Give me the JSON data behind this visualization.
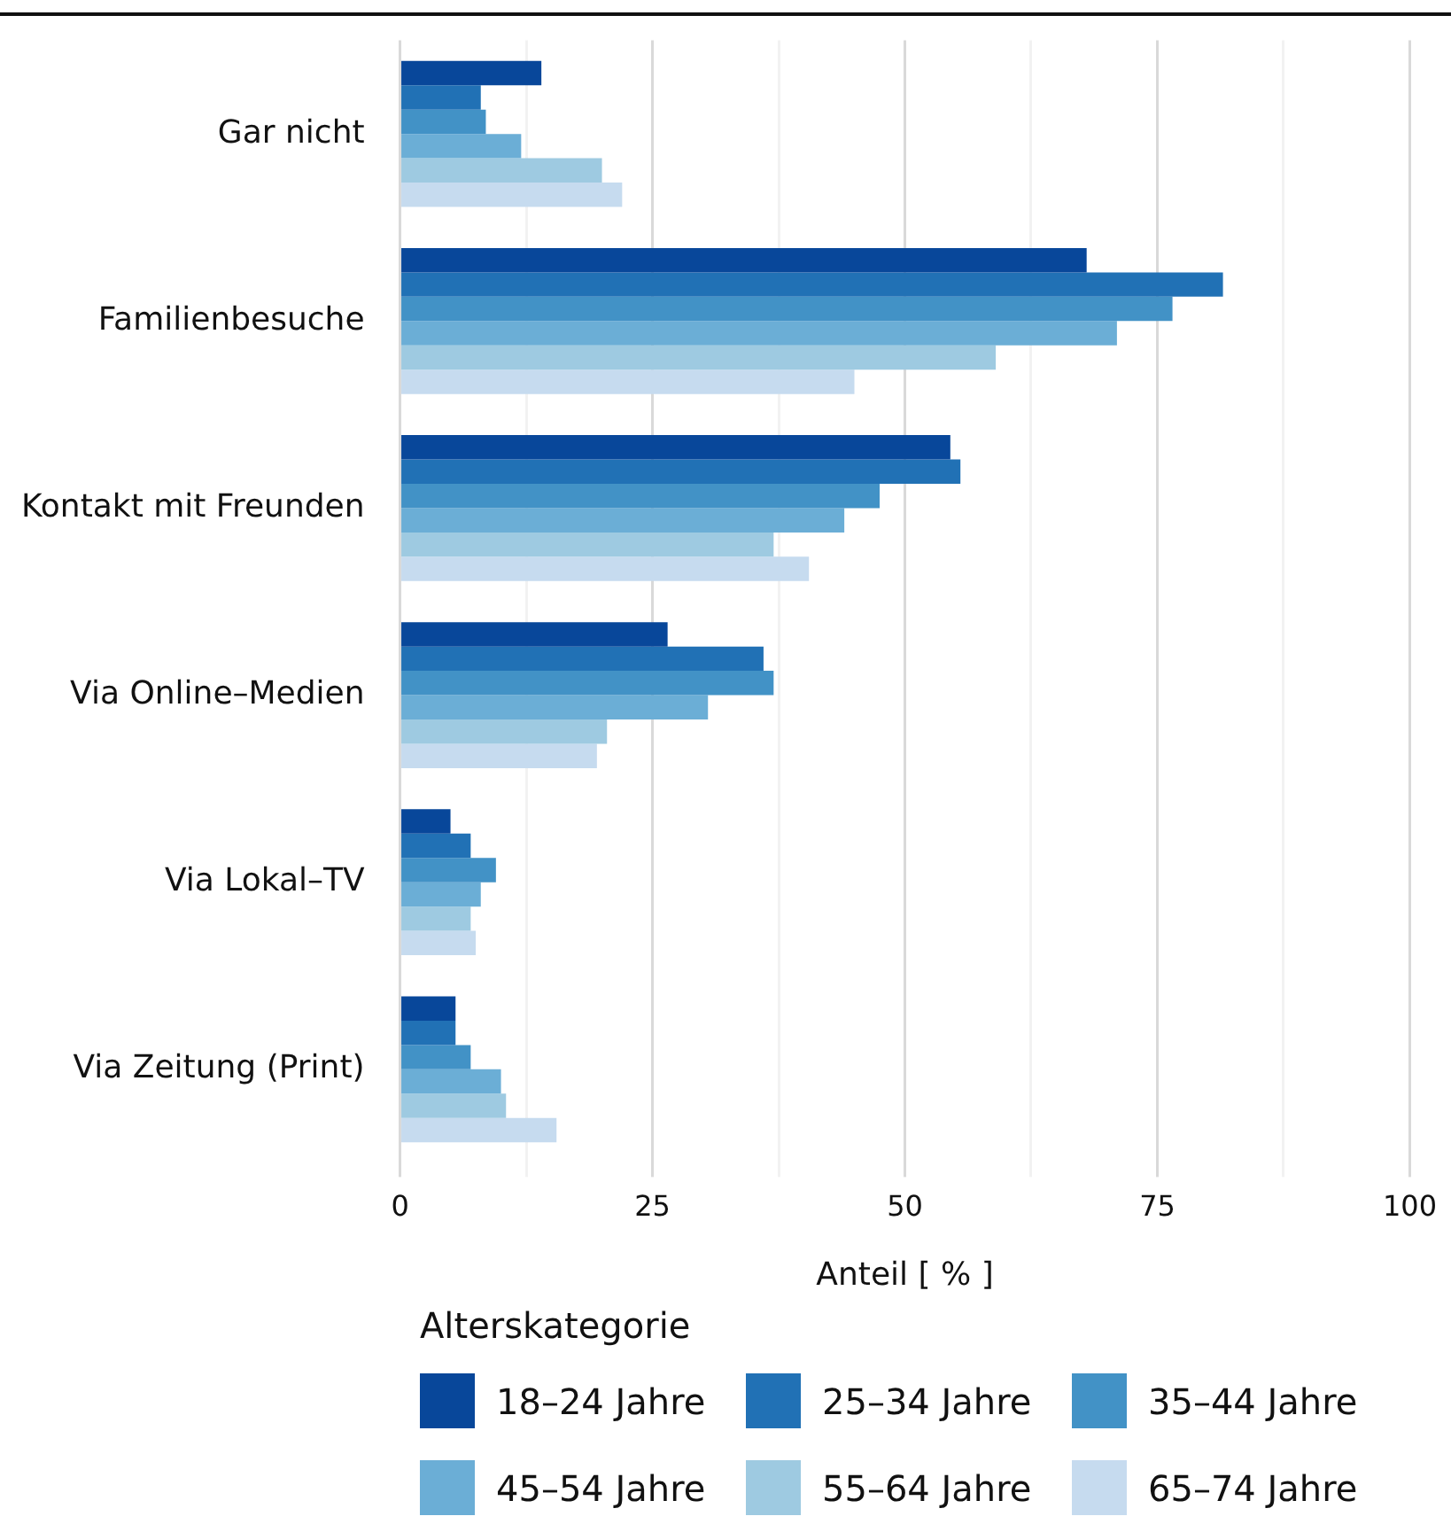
{
  "chart_data": {
    "type": "bar",
    "orientation": "horizontal",
    "xlabel": "Anteil [ % ]",
    "legend_title": "Alterskategorie",
    "legend": "bottom",
    "grid": "x",
    "categories": [
      "Gar nicht",
      "Familienbesuche",
      "Kontakt mit Freunden",
      "Via Online–Medien",
      "Via Lokal–TV",
      "Via Zeitung (Print)"
    ],
    "xlim": [
      0,
      100
    ],
    "xticks": [
      0,
      {
        "value": 12.5,
        "label": null
      },
      25,
      {
        "value": 37.5,
        "label": null
      },
      50,
      {
        "value": 62.5,
        "label": null
      },
      75,
      {
        "value": 87.5,
        "label": null
      },
      100
    ],
    "series": [
      {
        "name": "18–24 Jahre",
        "color": "#08479a",
        "values": [
          14,
          68,
          54.5,
          26.5,
          5,
          5.5
        ]
      },
      {
        "name": "25–34 Jahre",
        "color": "#2171b5",
        "values": [
          8,
          81.5,
          55.5,
          36,
          7,
          5.5
        ]
      },
      {
        "name": "35–44 Jahre",
        "color": "#4292c6",
        "values": [
          8.5,
          76.5,
          47.5,
          37,
          9.5,
          7
        ]
      },
      {
        "name": "45–54 Jahre",
        "color": "#6baed6",
        "values": [
          12,
          71,
          44,
          30.5,
          8,
          10
        ]
      },
      {
        "name": "55–64 Jahre",
        "color": "#9ecae1",
        "values": [
          20,
          59,
          37,
          20.5,
          7,
          10.5
        ]
      },
      {
        "name": "65–74 Jahre",
        "color": "#c6dbef",
        "values": [
          22,
          45,
          40.5,
          19.5,
          7.5,
          15.5
        ]
      }
    ]
  }
}
